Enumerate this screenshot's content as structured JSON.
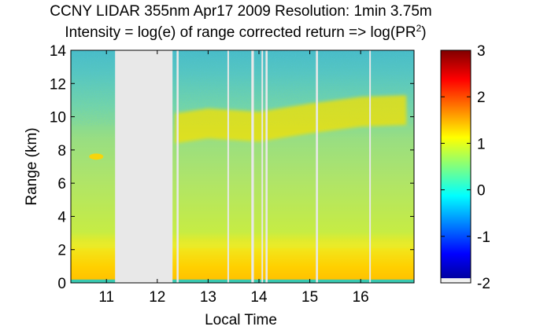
{
  "chart_data": {
    "type": "heatmap",
    "title": "CCNY LIDAR 355nm Apr17 2009 Resolution: 1min 3.75m",
    "subtitle": "Intensity = log(e) of range corrected return => log(PR",
    "subtitle_sup": "2",
    "subtitle_close": ")",
    "xlabel": "Local Time",
    "ylabel": "Range (km)",
    "xlim": [
      10.3,
      17.05
    ],
    "ylim": [
      0,
      14
    ],
    "xticks": [
      "11",
      "12",
      "13",
      "14",
      "15",
      "16"
    ],
    "yticks": [
      "0",
      "2",
      "4",
      "6",
      "8",
      "10",
      "12",
      "14"
    ],
    "colorbar": {
      "colormap": "jet",
      "range": [
        -2,
        3
      ],
      "ticks": [
        "-2",
        "-1",
        "0",
        "1",
        "2",
        "3"
      ]
    },
    "missing_data_gaps": [
      {
        "start": 11.17,
        "end": 12.3
      },
      {
        "start": 12.38,
        "end": 12.42
      },
      {
        "start": 13.38,
        "end": 13.41
      },
      {
        "start": 13.85,
        "end": 13.9
      },
      {
        "start": 14.05,
        "end": 14.08
      },
      {
        "start": 14.13,
        "end": 14.17
      },
      {
        "start": 15.12,
        "end": 15.16
      },
      {
        "start": 16.17,
        "end": 16.2
      }
    ],
    "cloud_layer_top_km": [
      {
        "x": 12.35,
        "y": 10.2
      },
      {
        "x": 13.0,
        "y": 10.5
      },
      {
        "x": 14.0,
        "y": 10.3
      },
      {
        "x": 15.0,
        "y": 10.8
      },
      {
        "x": 16.0,
        "y": 11.2
      },
      {
        "x": 16.9,
        "y": 11.3
      }
    ],
    "boundary_layer_top_km": 2.5,
    "colors": {
      "gap": "#e8e8e8",
      "background_signal": "#a8e070",
      "cloud": "#f5e100"
    }
  }
}
